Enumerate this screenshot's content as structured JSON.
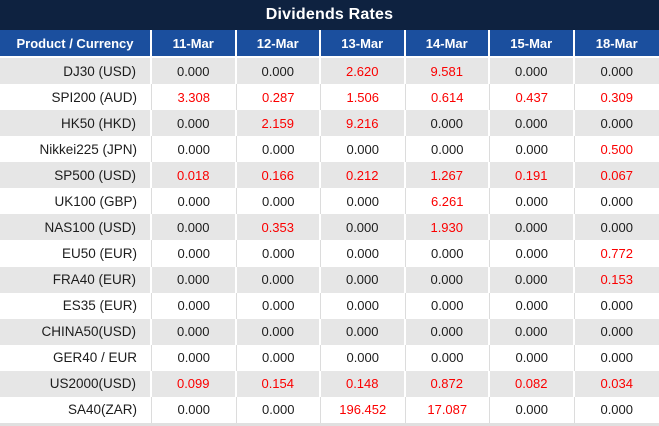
{
  "title": "Dividends Rates",
  "colors": {
    "title_bar_bg": "#0e2240",
    "header_bg": "#1b4f9e",
    "header_text": "#ffffff",
    "stripe_row_bg": "#e6e6e6",
    "plain_row_bg": "#ffffff",
    "value_text": "#1c1c1c",
    "nonzero_value_text": "#fb0000",
    "plain_row_divider": "#dcdcdc",
    "stripe_row_divider": "#ffffff"
  },
  "table": {
    "product_header": "Product / Currency",
    "date_headers": [
      "11-Mar",
      "12-Mar",
      "13-Mar",
      "14-Mar",
      "15-Mar",
      "18-Mar"
    ],
    "rows": [
      {
        "product": "DJ30 (USD)",
        "values": [
          "0.000",
          "0.000",
          "2.620",
          "9.581",
          "0.000",
          "0.000"
        ]
      },
      {
        "product": "SPI200 (AUD)",
        "values": [
          "3.308",
          "0.287",
          "1.506",
          "0.614",
          "0.437",
          "0.309"
        ]
      },
      {
        "product": "HK50 (HKD)",
        "values": [
          "0.000",
          "2.159",
          "9.216",
          "0.000",
          "0.000",
          "0.000"
        ]
      },
      {
        "product": "Nikkei225 (JPN)",
        "values": [
          "0.000",
          "0.000",
          "0.000",
          "0.000",
          "0.000",
          "0.500"
        ]
      },
      {
        "product": "SP500 (USD)",
        "values": [
          "0.018",
          "0.166",
          "0.212",
          "1.267",
          "0.191",
          "0.067"
        ]
      },
      {
        "product": "UK100 (GBP)",
        "values": [
          "0.000",
          "0.000",
          "0.000",
          "6.261",
          "0.000",
          "0.000"
        ]
      },
      {
        "product": "NAS100 (USD)",
        "values": [
          "0.000",
          "0.353",
          "0.000",
          "1.930",
          "0.000",
          "0.000"
        ]
      },
      {
        "product": "EU50 (EUR)",
        "values": [
          "0.000",
          "0.000",
          "0.000",
          "0.000",
          "0.000",
          "0.772"
        ]
      },
      {
        "product": "FRA40 (EUR)",
        "values": [
          "0.000",
          "0.000",
          "0.000",
          "0.000",
          "0.000",
          "0.153"
        ]
      },
      {
        "product": "ES35 (EUR)",
        "values": [
          "0.000",
          "0.000",
          "0.000",
          "0.000",
          "0.000",
          "0.000"
        ]
      },
      {
        "product": "CHINA50(USD)",
        "values": [
          "0.000",
          "0.000",
          "0.000",
          "0.000",
          "0.000",
          "0.000"
        ]
      },
      {
        "product": "GER40 / EUR",
        "values": [
          "0.000",
          "0.000",
          "0.000",
          "0.000",
          "0.000",
          "0.000"
        ]
      },
      {
        "product": "US2000(USD)",
        "values": [
          "0.099",
          "0.154",
          "0.148",
          "0.872",
          "0.082",
          "0.034"
        ]
      },
      {
        "product": "SA40(ZAR)",
        "values": [
          "0.000",
          "0.000",
          "196.452",
          "17.087",
          "0.000",
          "0.000"
        ]
      }
    ]
  },
  "chart_data": {
    "type": "table",
    "title": "Dividends Rates",
    "columns": [
      "Product / Currency",
      "11-Mar",
      "12-Mar",
      "13-Mar",
      "14-Mar",
      "15-Mar",
      "18-Mar"
    ],
    "rows": [
      [
        "DJ30 (USD)",
        0.0,
        0.0,
        2.62,
        9.581,
        0.0,
        0.0
      ],
      [
        "SPI200 (AUD)",
        3.308,
        0.287,
        1.506,
        0.614,
        0.437,
        0.309
      ],
      [
        "HK50 (HKD)",
        0.0,
        2.159,
        9.216,
        0.0,
        0.0,
        0.0
      ],
      [
        "Nikkei225 (JPN)",
        0.0,
        0.0,
        0.0,
        0.0,
        0.0,
        0.5
      ],
      [
        "SP500 (USD)",
        0.018,
        0.166,
        0.212,
        1.267,
        0.191,
        0.067
      ],
      [
        "UK100 (GBP)",
        0.0,
        0.0,
        0.0,
        6.261,
        0.0,
        0.0
      ],
      [
        "NAS100 (USD)",
        0.0,
        0.353,
        0.0,
        1.93,
        0.0,
        0.0
      ],
      [
        "EU50 (EUR)",
        0.0,
        0.0,
        0.0,
        0.0,
        0.0,
        0.772
      ],
      [
        "FRA40 (EUR)",
        0.0,
        0.0,
        0.0,
        0.0,
        0.0,
        0.153
      ],
      [
        "ES35 (EUR)",
        0.0,
        0.0,
        0.0,
        0.0,
        0.0,
        0.0
      ],
      [
        "CHINA50(USD)",
        0.0,
        0.0,
        0.0,
        0.0,
        0.0,
        0.0
      ],
      [
        "GER40 / EUR",
        0.0,
        0.0,
        0.0,
        0.0,
        0.0,
        0.0
      ],
      [
        "US2000(USD)",
        0.099,
        0.154,
        0.148,
        0.872,
        0.082,
        0.034
      ],
      [
        "SA40(ZAR)",
        0.0,
        0.0,
        196.452,
        17.087,
        0.0,
        0.0
      ]
    ],
    "value_format": "3 decimal places",
    "highlight_rule": "non-zero values rendered in red, zero values in black",
    "row_striping": "alternating gray/white starting with gray"
  }
}
